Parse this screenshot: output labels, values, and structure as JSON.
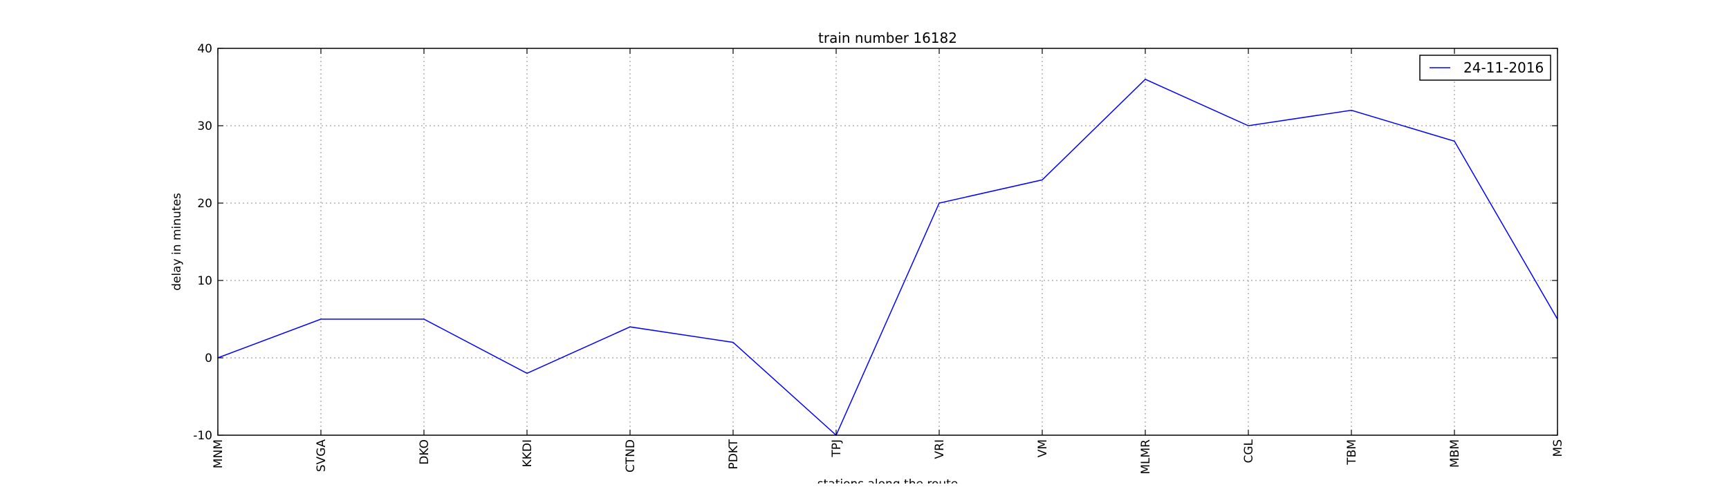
{
  "chart_data": {
    "type": "line",
    "title": "train number 16182",
    "xlabel": "stations along the route",
    "ylabel": "delay in minutes",
    "categories": [
      "MNM",
      "SVGA",
      "DKO",
      "KKDI",
      "CTND",
      "PDKT",
      "TPJ",
      "VRI",
      "VM",
      "MLMR",
      "CGL",
      "TBM",
      "MBM",
      "MS"
    ],
    "series": [
      {
        "name": "24-11-2016",
        "values": [
          0,
          5,
          5,
          -2,
          4,
          2,
          -10,
          20,
          23,
          36,
          30,
          32,
          28,
          5
        ],
        "color": "#0000ff"
      }
    ],
    "ylim": [
      -10,
      40
    ],
    "yticks": [
      -10,
      0,
      10,
      20,
      30,
      40
    ],
    "grid": true,
    "legend": "top-right"
  }
}
